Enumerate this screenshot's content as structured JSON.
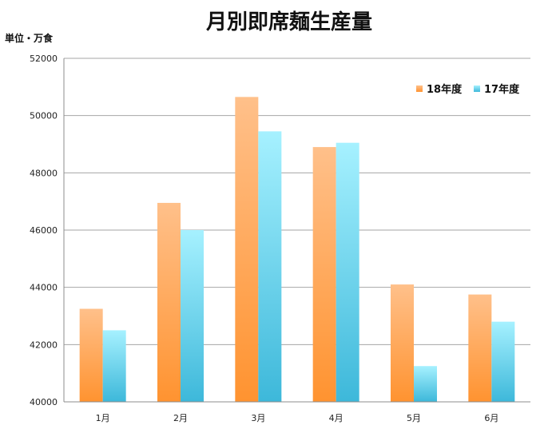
{
  "chart_data": {
    "type": "bar",
    "title": "月別即席麺生産量",
    "ylabel": "単位・万食",
    "xlabel": "",
    "categories": [
      "1月",
      "2月",
      "3月",
      "4月",
      "5月",
      "6月"
    ],
    "series": [
      {
        "name": "18年度",
        "values": [
          43250,
          46950,
          50650,
          48900,
          44100,
          43750
        ],
        "color_top": "#ffc08a",
        "color_bottom": "#ff9330"
      },
      {
        "name": "17年度",
        "values": [
          42500,
          46000,
          49450,
          49050,
          41250,
          42800
        ],
        "color_top": "#a6f1ff",
        "color_bottom": "#3db8da"
      }
    ],
    "ylim": [
      40000,
      52000
    ],
    "yticks": [
      40000,
      42000,
      44000,
      46000,
      48000,
      50000,
      52000
    ],
    "grid": true,
    "legend": "top-right"
  }
}
